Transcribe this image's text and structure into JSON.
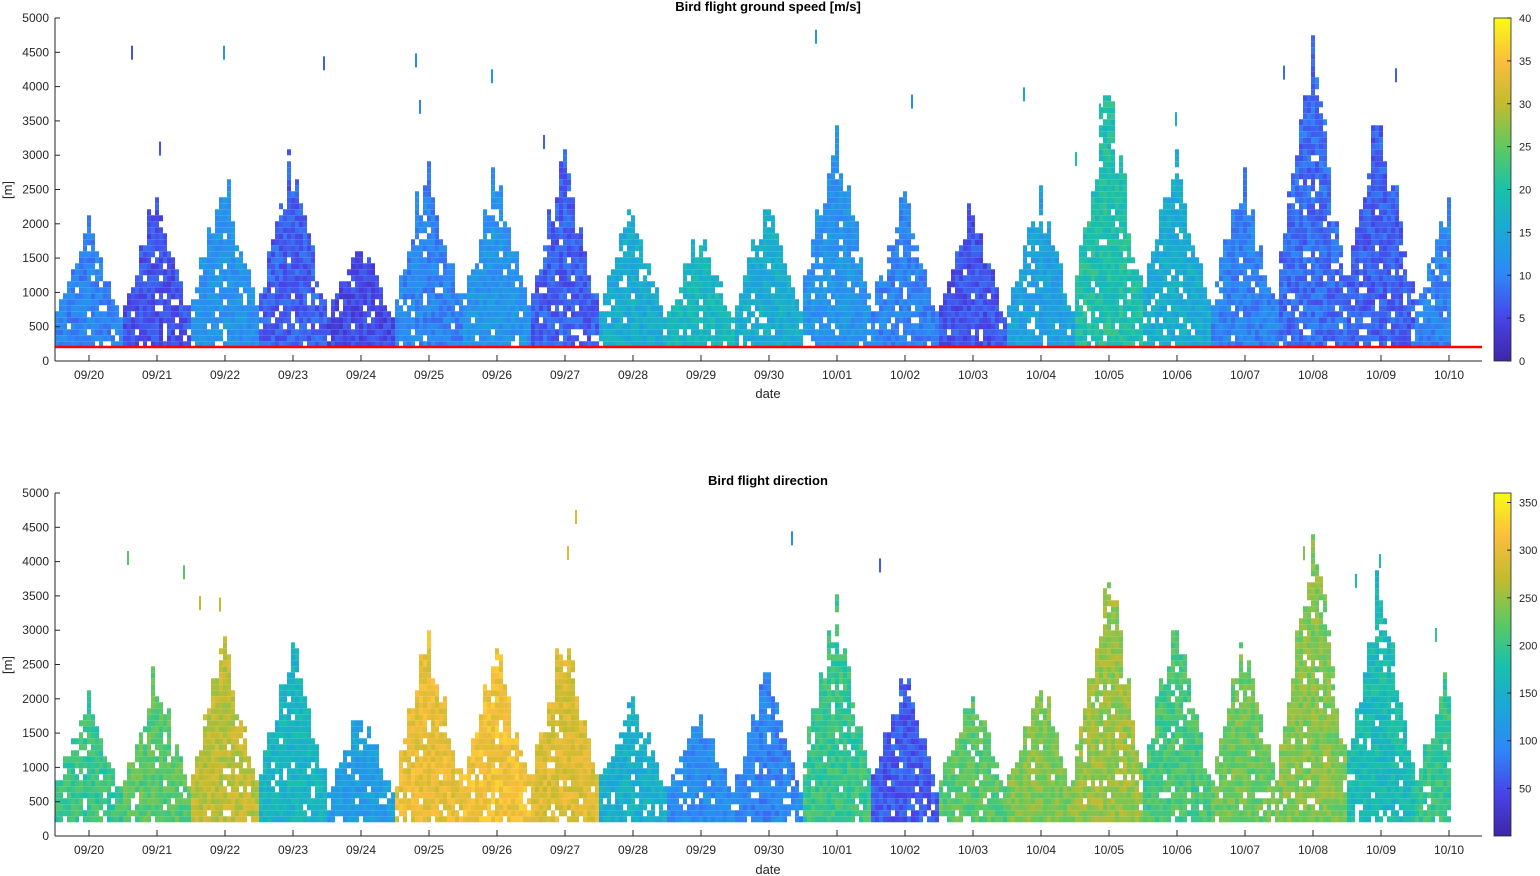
{
  "chart_data": [
    {
      "type": "heatmap",
      "title": "Bird flight ground speed [m/s]",
      "xlabel": "date",
      "ylabel": "[m]",
      "x_tick_labels": [
        "09/20",
        "09/21",
        "09/22",
        "09/23",
        "09/24",
        "09/25",
        "09/26",
        "09/27",
        "09/28",
        "09/29",
        "09/30",
        "10/01",
        "10/02",
        "10/03",
        "10/04",
        "10/05",
        "10/06",
        "10/07",
        "10/08",
        "10/09",
        "10/10"
      ],
      "y_tick_labels": [
        "0",
        "500",
        "1000",
        "1500",
        "2000",
        "2500",
        "3000",
        "3500",
        "4000",
        "4500",
        "5000"
      ],
      "ylim": [
        0,
        5000
      ],
      "colorbar": {
        "ticks": [
          0,
          5,
          10,
          15,
          20,
          25,
          30,
          35,
          40
        ],
        "range": [
          0,
          40
        ],
        "colormap": "parula"
      },
      "reference_line": {
        "y": 200,
        "color": "#ff0000"
      },
      "estimated_profile": {
        "description_units": "per-day: [max height m, typical value]",
        "days": [
          [
            "09/20",
            2200,
            10
          ],
          [
            "09/21",
            2600,
            6
          ],
          [
            "09/22",
            3000,
            12
          ],
          [
            "09/23",
            3200,
            7
          ],
          [
            "09/24",
            2000,
            5
          ],
          [
            "09/25",
            3200,
            10
          ],
          [
            "09/26",
            3000,
            12
          ],
          [
            "09/27",
            3200,
            7
          ],
          [
            "09/28",
            2400,
            16
          ],
          [
            "09/29",
            2000,
            18
          ],
          [
            "09/30",
            2600,
            16
          ],
          [
            "10/01",
            3800,
            12
          ],
          [
            "10/02",
            2600,
            10
          ],
          [
            "10/03",
            2400,
            6
          ],
          [
            "10/04",
            2600,
            14
          ],
          [
            "10/05",
            4400,
            20
          ],
          [
            "10/06",
            3400,
            16
          ],
          [
            "10/07",
            3000,
            10
          ],
          [
            "10/08",
            5000,
            8
          ],
          [
            "10/09",
            4200,
            7
          ],
          [
            "10/10",
            2600,
            10
          ]
        ]
      }
    },
    {
      "type": "heatmap",
      "title": "Bird flight direction",
      "xlabel": "date",
      "ylabel": "[m]",
      "x_tick_labels": [
        "09/20",
        "09/21",
        "09/22",
        "09/23",
        "09/24",
        "09/25",
        "09/26",
        "09/27",
        "09/28",
        "09/29",
        "09/30",
        "10/01",
        "10/02",
        "10/03",
        "10/04",
        "10/05",
        "10/06",
        "10/07",
        "10/08",
        "10/09",
        "10/10"
      ],
      "y_tick_labels": [
        "0",
        "500",
        "1000",
        "1500",
        "2000",
        "2500",
        "3000",
        "3500",
        "4000",
        "4500",
        "5000"
      ],
      "ylim": [
        0,
        5000
      ],
      "colorbar": {
        "ticks": [
          50,
          100,
          150,
          200,
          250,
          300,
          350
        ],
        "range": [
          0,
          360
        ],
        "colormap": "parula"
      },
      "estimated_profile": {
        "description_units": "per-day: [max height m, typical value]",
        "days": [
          [
            "09/20",
            2200,
            200
          ],
          [
            "09/21",
            2600,
            220
          ],
          [
            "09/22",
            3000,
            270
          ],
          [
            "09/23",
            3200,
            160
          ],
          [
            "09/24",
            2000,
            120
          ],
          [
            "09/25",
            3200,
            300
          ],
          [
            "09/26",
            3000,
            310
          ],
          [
            "09/27",
            3200,
            290
          ],
          [
            "09/28",
            2400,
            150
          ],
          [
            "09/29",
            2000,
            100
          ],
          [
            "09/30",
            2600,
            90
          ],
          [
            "10/01",
            3800,
            200
          ],
          [
            "10/02",
            2600,
            60
          ],
          [
            "10/03",
            2400,
            220
          ],
          [
            "10/04",
            2600,
            240
          ],
          [
            "10/05",
            4400,
            250
          ],
          [
            "10/06",
            3400,
            210
          ],
          [
            "10/07",
            3000,
            230
          ],
          [
            "10/08",
            5000,
            240
          ],
          [
            "10/09",
            4200,
            170
          ],
          [
            "10/10",
            2600,
            200
          ]
        ]
      }
    }
  ]
}
